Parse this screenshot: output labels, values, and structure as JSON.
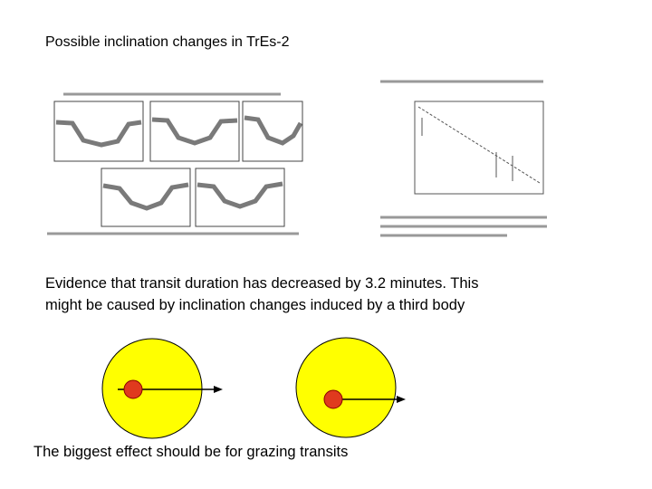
{
  "slide": {
    "title": "Possible inclination changes in TrEs-2",
    "evidence": [
      "Evidence that transit duration has decreased by 3.2 minutes. This",
      "might be caused by inclination changes induced by a third body"
    ],
    "conclusion": "The biggest effect should be for grazing transits"
  }
}
